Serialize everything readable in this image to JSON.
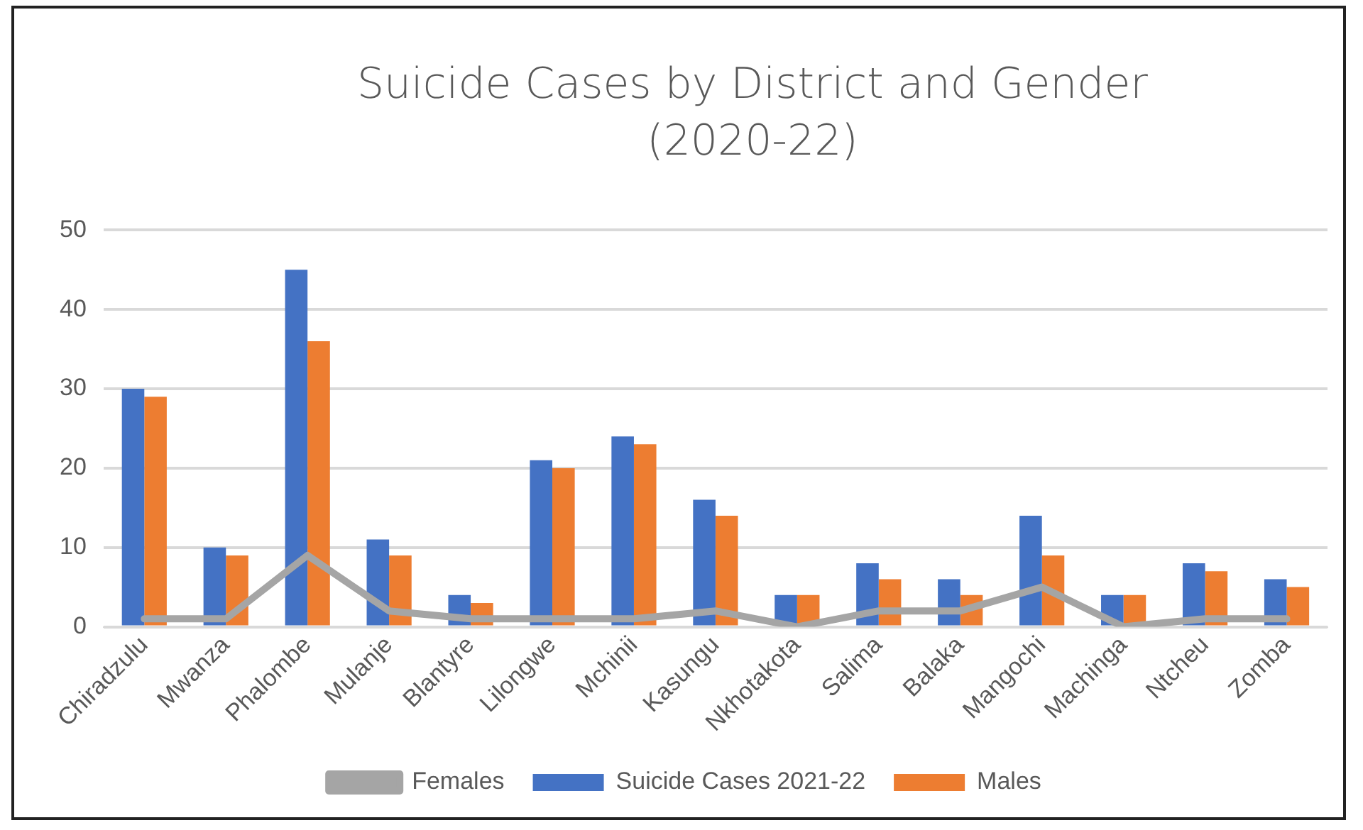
{
  "chart_data": {
    "type": "bar",
    "title": "Suicide Cases by District and Gender (2020-22)",
    "categories": [
      "Chiradzulu",
      "Mwanza",
      "Phalombe",
      "Mulanje",
      "Blantyre",
      "Lilongwe",
      "Mchinii",
      "Kasungu",
      "Nkhotakota",
      "Salima",
      "Balaka",
      "Mangochi",
      "Machinga",
      "Ntcheu",
      "Zomba"
    ],
    "series": [
      {
        "name": "Suicide Cases 2021-22",
        "color": "#4472c4",
        "values": [
          30,
          10,
          45,
          11,
          4,
          21,
          24,
          16,
          4,
          8,
          6,
          14,
          4,
          8,
          6
        ]
      },
      {
        "name": "Males",
        "color": "#ed7d31",
        "values": [
          29,
          9,
          36,
          9,
          3,
          20,
          23,
          14,
          4,
          6,
          4,
          9,
          4,
          7,
          5
        ]
      },
      {
        "name": "Females",
        "type": "line",
        "color": "#a5a5a5",
        "marker": "none",
        "values": [
          1,
          1,
          9,
          2,
          1,
          1,
          1,
          2,
          0,
          2,
          2,
          5,
          0,
          1,
          1
        ]
      }
    ],
    "ylim": [
      0,
      50
    ],
    "yticks": [
      0,
      10,
      20,
      30,
      40,
      50
    ],
    "grid": "y",
    "legend": "bottom"
  }
}
